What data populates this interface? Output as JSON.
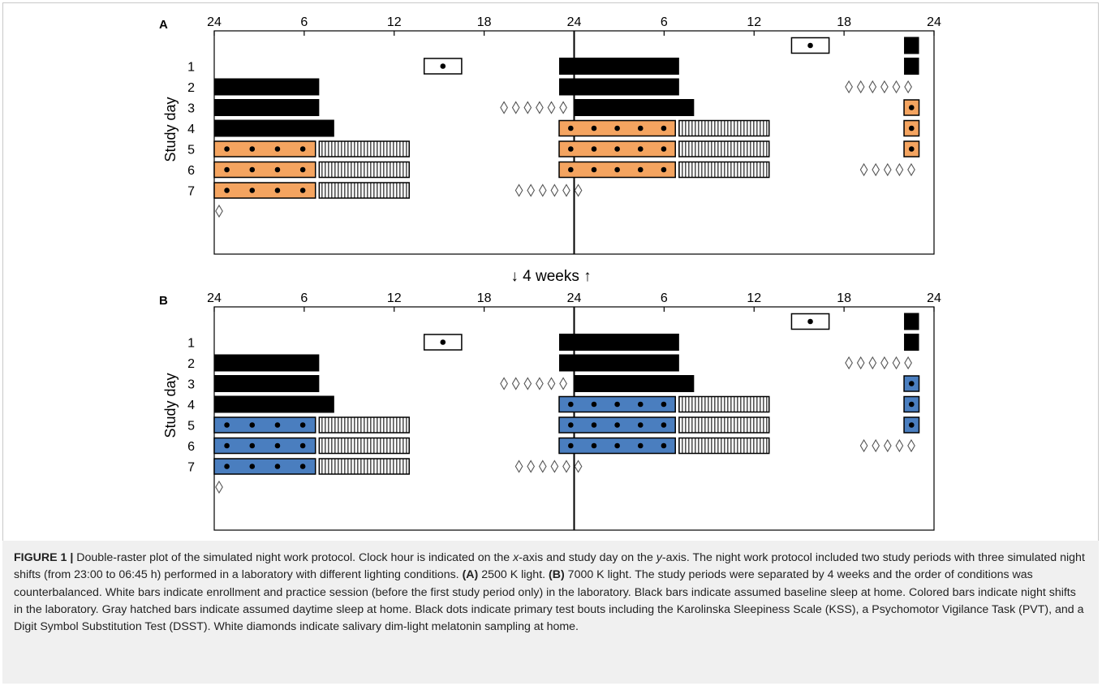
{
  "chart_data": [
    {
      "type": "double-raster",
      "panel_label": "A",
      "x_ticks": [
        "24",
        "6",
        "12",
        "18",
        "24",
        "6",
        "12",
        "18",
        "24"
      ],
      "xlim": [
        0,
        48
      ],
      "ylabel": "Study day",
      "days": [
        "1",
        "2",
        "3",
        "4",
        "5",
        "6",
        "7"
      ],
      "shift_color": "#f4a460",
      "events": [
        {
          "type": "white",
          "day": 0,
          "start": 38.5,
          "end": 41
        },
        {
          "type": "black",
          "day": 0,
          "start": 46,
          "end": 47
        },
        {
          "type": "white",
          "day": 1,
          "start": 14,
          "end": 16.5
        },
        {
          "type": "black",
          "day": 1,
          "start": 23,
          "end": 31
        },
        {
          "type": "black",
          "day": 1,
          "start": 46,
          "end": 47
        },
        {
          "type": "black",
          "day": 2,
          "start": 0,
          "end": 7
        },
        {
          "type": "black",
          "day": 2,
          "start": 23,
          "end": 31
        },
        {
          "type": "black",
          "day": 3,
          "start": 0,
          "end": 7
        },
        {
          "type": "black",
          "day": 3,
          "start": 24,
          "end": 32
        },
        {
          "type": "shift",
          "day": 3,
          "start": 46,
          "end": 47
        },
        {
          "type": "black",
          "day": 4,
          "start": 0,
          "end": 8
        },
        {
          "type": "shift",
          "day": 4,
          "start": 23,
          "end": 30.75
        },
        {
          "type": "hatch",
          "day": 4,
          "start": 31,
          "end": 37
        },
        {
          "type": "shift",
          "day": 4,
          "start": 46,
          "end": 47
        },
        {
          "type": "shift",
          "day": 5,
          "start": 0,
          "end": 6.75
        },
        {
          "type": "hatch",
          "day": 5,
          "start": 7,
          "end": 13
        },
        {
          "type": "shift",
          "day": 5,
          "start": 23,
          "end": 30.75
        },
        {
          "type": "hatch",
          "day": 5,
          "start": 31,
          "end": 37
        },
        {
          "type": "shift",
          "day": 5,
          "start": 46,
          "end": 47
        },
        {
          "type": "shift",
          "day": 6,
          "start": 0,
          "end": 6.75
        },
        {
          "type": "hatch",
          "day": 6,
          "start": 7,
          "end": 13
        },
        {
          "type": "shift",
          "day": 6,
          "start": 23,
          "end": 30.75
        },
        {
          "type": "hatch",
          "day": 6,
          "start": 31,
          "end": 37
        },
        {
          "type": "shift",
          "day": 7,
          "start": 0,
          "end": 6.75
        },
        {
          "type": "hatch",
          "day": 7,
          "start": 7,
          "end": 13
        }
      ],
      "diamonds": [
        {
          "day": 2,
          "start": 42,
          "count": 6
        },
        {
          "day": 3,
          "start": 19,
          "count": 6
        },
        {
          "day": 6,
          "start": 43,
          "count": 5
        },
        {
          "day": 7,
          "start": 20,
          "count": 6
        },
        {
          "day": 8,
          "start": 0,
          "count": 1
        }
      ]
    },
    {
      "type": "double-raster",
      "panel_label": "B",
      "x_ticks": [
        "24",
        "6",
        "12",
        "18",
        "24",
        "6",
        "12",
        "18",
        "24"
      ],
      "xlim": [
        0,
        48
      ],
      "ylabel": "Study day",
      "days": [
        "1",
        "2",
        "3",
        "4",
        "5",
        "6",
        "7"
      ],
      "shift_color": "#4a7ebf",
      "events": [
        {
          "type": "white",
          "day": 0,
          "start": 38.5,
          "end": 41
        },
        {
          "type": "black",
          "day": 0,
          "start": 46,
          "end": 47
        },
        {
          "type": "white",
          "day": 1,
          "start": 14,
          "end": 16.5
        },
        {
          "type": "black",
          "day": 1,
          "start": 23,
          "end": 31
        },
        {
          "type": "black",
          "day": 1,
          "start": 46,
          "end": 47
        },
        {
          "type": "black",
          "day": 2,
          "start": 0,
          "end": 7
        },
        {
          "type": "black",
          "day": 2,
          "start": 23,
          "end": 31
        },
        {
          "type": "black",
          "day": 3,
          "start": 0,
          "end": 7
        },
        {
          "type": "black",
          "day": 3,
          "start": 24,
          "end": 32
        },
        {
          "type": "shift",
          "day": 3,
          "start": 46,
          "end": 47
        },
        {
          "type": "black",
          "day": 4,
          "start": 0,
          "end": 8
        },
        {
          "type": "shift",
          "day": 4,
          "start": 23,
          "end": 30.75
        },
        {
          "type": "hatch",
          "day": 4,
          "start": 31,
          "end": 37
        },
        {
          "type": "shift",
          "day": 4,
          "start": 46,
          "end": 47
        },
        {
          "type": "shift",
          "day": 5,
          "start": 0,
          "end": 6.75
        },
        {
          "type": "hatch",
          "day": 5,
          "start": 7,
          "end": 13
        },
        {
          "type": "shift",
          "day": 5,
          "start": 23,
          "end": 30.75
        },
        {
          "type": "hatch",
          "day": 5,
          "start": 31,
          "end": 37
        },
        {
          "type": "shift",
          "day": 5,
          "start": 46,
          "end": 47
        },
        {
          "type": "shift",
          "day": 6,
          "start": 0,
          "end": 6.75
        },
        {
          "type": "hatch",
          "day": 6,
          "start": 7,
          "end": 13
        },
        {
          "type": "shift",
          "day": 6,
          "start": 23,
          "end": 30.75
        },
        {
          "type": "hatch",
          "day": 6,
          "start": 31,
          "end": 37
        },
        {
          "type": "shift",
          "day": 7,
          "start": 0,
          "end": 6.75
        },
        {
          "type": "hatch",
          "day": 7,
          "start": 7,
          "end": 13
        }
      ],
      "diamonds": [
        {
          "day": 2,
          "start": 42,
          "count": 6
        },
        {
          "day": 3,
          "start": 19,
          "count": 6
        },
        {
          "day": 6,
          "start": 43,
          "count": 5
        },
        {
          "day": 7,
          "start": 20,
          "count": 6
        },
        {
          "day": 8,
          "start": 0,
          "count": 1
        }
      ]
    }
  ],
  "separator": "↓ 4 weeks ↑",
  "caption": {
    "label": "FIGURE 1 |",
    "text1": " Double-raster plot of the simulated night work protocol. Clock hour is indicated on the ",
    "x_italic": "x",
    "text2": "-axis and study day on the ",
    "y_italic": "y",
    "text3": "-axis. The night work protocol included two study periods with three simulated night shifts (from 23:00 to 06:45 h) performed in a laboratory with different lighting conditions. ",
    "a_label": "(A)",
    "a_text": " 2500 K light. ",
    "b_label": "(B)",
    "b_text": " 7000 K light. The study periods were separated by 4 weeks and the order of conditions was counterbalanced. White bars indicate enrollment and practice session (before the first study period only) in the laboratory. Black bars indicate assumed baseline sleep at home. Colored bars indicate night shifts in the laboratory. Gray hatched bars indicate assumed daytime sleep at home. Black dots indicate primary test bouts including the Karolinska Sleepiness Scale (KSS), a Psychomotor Vigilance Task (PVT), and a Digit Symbol Substitution Test (DSST). White diamonds indicate salivary dim-light melatonin sampling at home."
  }
}
